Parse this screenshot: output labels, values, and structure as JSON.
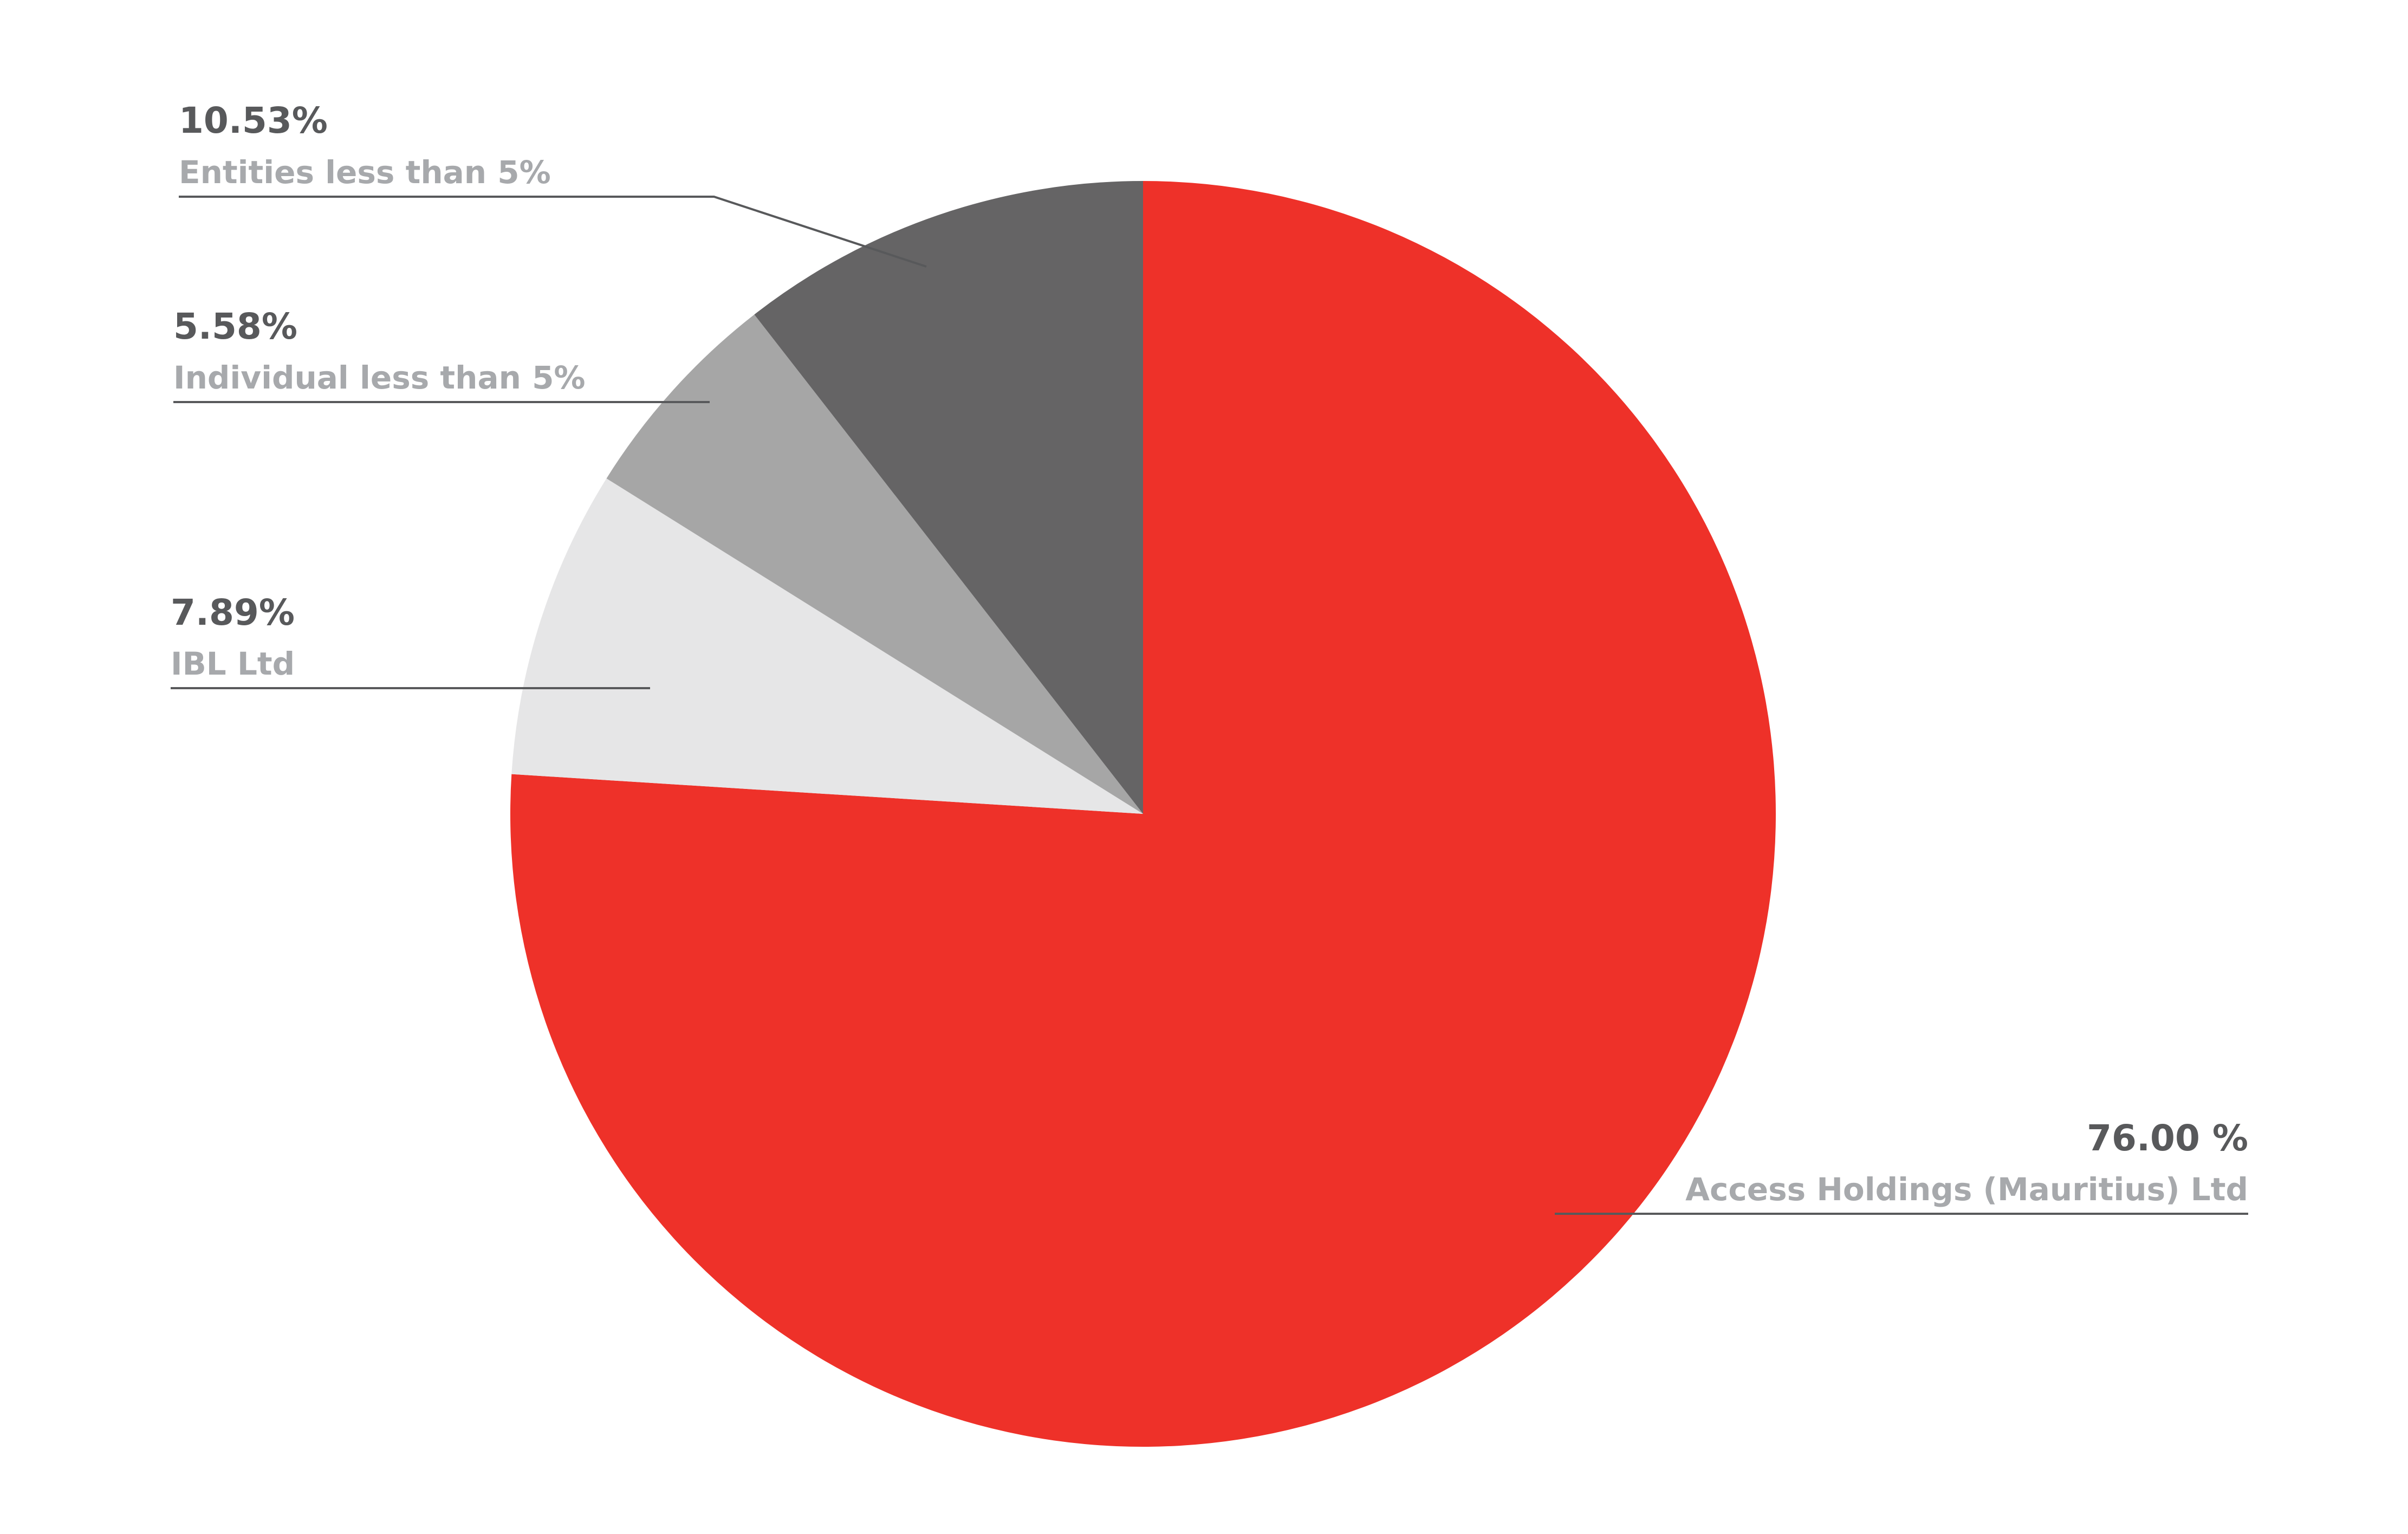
{
  "chart_data": {
    "type": "pie",
    "title": "",
    "start_angle_deg": 0,
    "direction": "clockwise",
    "slices": [
      {
        "label": "Access Holdings (Mauritius) Ltd",
        "value": 76.0,
        "value_label": "76.00 %",
        "color": "#ee3129"
      },
      {
        "label": "IBL Ltd",
        "value": 7.89,
        "value_label": "7.89%",
        "color": "#e6e6e7"
      },
      {
        "label": "Individual less than 5%",
        "value": 5.58,
        "value_label": "5.58%",
        "color": "#a6a6a6"
      },
      {
        "label": "Entities less than 5%",
        "value": 10.53,
        "value_label": "10.53%",
        "color": "#656465"
      }
    ]
  }
}
